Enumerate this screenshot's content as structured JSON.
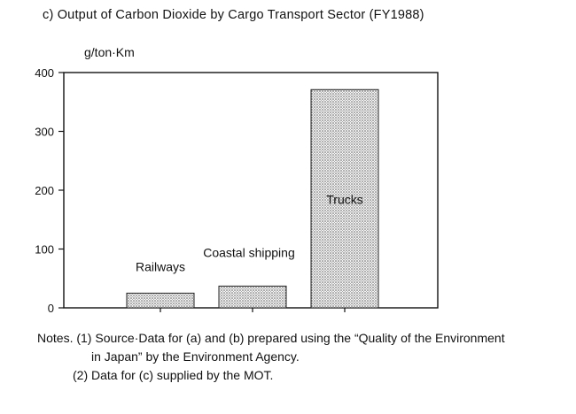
{
  "chart_data": {
    "type": "bar",
    "title": "c) Output of Carbon Dioxide by Cargo Transport Sector (FY1988)",
    "ylabel": "g/ton·Km",
    "xlabel": "",
    "categories": [
      "Railways",
      "Coastal shipping",
      "Trucks"
    ],
    "values": [
      25,
      37,
      371
    ],
    "ylim": [
      0,
      400
    ],
    "yticks": [
      "0",
      "100",
      "200",
      "300",
      "400"
    ],
    "grid": false,
    "legend": "none",
    "bar_fill": "dotted gray"
  },
  "notes": {
    "line1": "Notes. (1) Source·Data for (a) and (b) prepared using the “Quality of the Environment",
    "line2": "in Japan” by the Environment Agency.",
    "line3": "(2) Data for (c) supplied by the MOT."
  }
}
